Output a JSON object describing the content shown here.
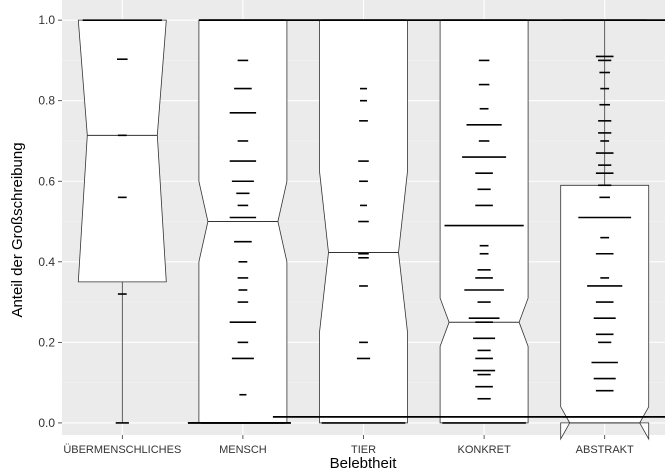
{
  "chart_data": {
    "type": "boxplot",
    "xlabel": "Belebtheit",
    "ylabel": "Anteil der Großschreibung",
    "ylim": [
      -0.03,
      1.05
    ],
    "yticks": [
      "0.0",
      "0.2",
      "0.4",
      "0.6",
      "0.8",
      "1.0"
    ],
    "yticks_values": [
      0,
      0.2,
      0.4,
      0.6,
      0.8,
      1.0
    ],
    "grid": true,
    "notched": true,
    "categories": [
      "ÜBERMENSCHLICHES",
      "MENSCH",
      "TIER",
      "KONKRET",
      "ABSTRAKT"
    ],
    "boxes": [
      {
        "category": "ÜBERMENSCHLICHES",
        "q1": 0.35,
        "median": 0.714,
        "q3": 1.0,
        "notch_low": 0.35,
        "notch_high": 1.0,
        "whisker_low": 0.0,
        "whisker_high": 1.0,
        "points": [
          [
            1.0,
            0.9
          ],
          [
            0.903,
            0.12
          ],
          [
            0.714,
            0.1
          ],
          [
            0.56,
            0.1
          ],
          [
            0.32,
            0.1
          ],
          [
            0.0,
            0.15
          ]
        ]
      },
      {
        "category": "MENSCH",
        "q1": 0.0,
        "median": 0.5,
        "q3": 1.0,
        "notch_low": 0.4,
        "notch_high": 0.6,
        "whisker_low": 0.0,
        "whisker_high": 1.0,
        "points": [
          [
            1.0,
            0.95
          ],
          [
            0.9,
            0.12
          ],
          [
            0.83,
            0.2
          ],
          [
            0.77,
            0.3
          ],
          [
            0.7,
            0.12
          ],
          [
            0.65,
            0.3
          ],
          [
            0.6,
            0.25
          ],
          [
            0.57,
            0.15
          ],
          [
            0.54,
            0.12
          ],
          [
            0.51,
            0.3
          ],
          [
            0.45,
            0.2
          ],
          [
            0.4,
            0.1
          ],
          [
            0.36,
            0.12
          ],
          [
            0.33,
            0.1
          ],
          [
            0.3,
            0.12
          ],
          [
            0.25,
            0.3
          ],
          [
            0.2,
            0.12
          ],
          [
            0.16,
            0.25
          ],
          [
            0.07,
            0.08
          ],
          [
            0.0,
            0.95
          ]
        ]
      },
      {
        "category": "TIER",
        "q1": 0.0,
        "median": 0.423,
        "q3": 1.0,
        "notch_low": 0.225,
        "notch_high": 0.625,
        "whisker_low": 0.0,
        "whisker_high": 1.0,
        "points": [
          [
            1.0,
            0.95
          ],
          [
            0.83,
            0.08
          ],
          [
            0.8,
            0.08
          ],
          [
            0.75,
            0.1
          ],
          [
            0.65,
            0.12
          ],
          [
            0.6,
            0.1
          ],
          [
            0.54,
            0.08
          ],
          [
            0.5,
            0.12
          ],
          [
            0.42,
            0.12
          ],
          [
            0.41,
            0.12
          ],
          [
            0.34,
            0.1
          ],
          [
            0.2,
            0.1
          ],
          [
            0.16,
            0.15
          ],
          [
            0.0,
            0.95
          ]
        ]
      },
      {
        "category": "KONKRET",
        "q1": 0.0,
        "median": 0.25,
        "q3": 1.0,
        "notch_low": 0.19,
        "notch_high": 0.31,
        "whisker_low": 0.0,
        "whisker_high": 1.0,
        "points": [
          [
            1.0,
            0.95
          ],
          [
            0.9,
            0.12
          ],
          [
            0.84,
            0.12
          ],
          [
            0.78,
            0.1
          ],
          [
            0.74,
            0.4
          ],
          [
            0.7,
            0.12
          ],
          [
            0.66,
            0.5
          ],
          [
            0.62,
            0.2
          ],
          [
            0.58,
            0.15
          ],
          [
            0.54,
            0.2
          ],
          [
            0.49,
            0.9
          ],
          [
            0.44,
            0.1
          ],
          [
            0.42,
            0.1
          ],
          [
            0.38,
            0.15
          ],
          [
            0.36,
            0.2
          ],
          [
            0.33,
            0.45
          ],
          [
            0.3,
            0.15
          ],
          [
            0.26,
            0.35
          ],
          [
            0.25,
            0.2
          ],
          [
            0.21,
            0.25
          ],
          [
            0.18,
            0.15
          ],
          [
            0.16,
            0.2
          ],
          [
            0.13,
            0.25
          ],
          [
            0.12,
            0.15
          ],
          [
            0.09,
            0.2
          ],
          [
            0.06,
            0.15
          ],
          [
            0.0,
            0.95
          ]
        ]
      },
      {
        "category": "ABSTRAKT",
        "q1": 0.0,
        "median": 0.0,
        "q3": 0.59,
        "notch_low": -0.04,
        "notch_high": 0.04,
        "whisker_low": 0.0,
        "whisker_high": 1.0,
        "points": [
          [
            1.0,
            0.95
          ],
          [
            0.91,
            0.2
          ],
          [
            0.9,
            0.15
          ],
          [
            0.87,
            0.12
          ],
          [
            0.83,
            0.1
          ],
          [
            0.79,
            0.12
          ],
          [
            0.75,
            0.15
          ],
          [
            0.72,
            0.15
          ],
          [
            0.7,
            0.1
          ],
          [
            0.67,
            0.2
          ],
          [
            0.64,
            0.15
          ],
          [
            0.62,
            0.2
          ],
          [
            0.59,
            0.15
          ],
          [
            0.56,
            0.12
          ],
          [
            0.51,
            0.6
          ],
          [
            0.46,
            0.1
          ],
          [
            0.42,
            0.2
          ],
          [
            0.36,
            0.1
          ],
          [
            0.34,
            0.4
          ],
          [
            0.3,
            0.2
          ],
          [
            0.26,
            0.25
          ],
          [
            0.22,
            0.2
          ],
          [
            0.2,
            0.15
          ],
          [
            0.15,
            0.3
          ],
          [
            0.11,
            0.25
          ],
          [
            0.08,
            0.2
          ],
          [
            0.015,
            0.95
          ]
        ]
      }
    ]
  }
}
